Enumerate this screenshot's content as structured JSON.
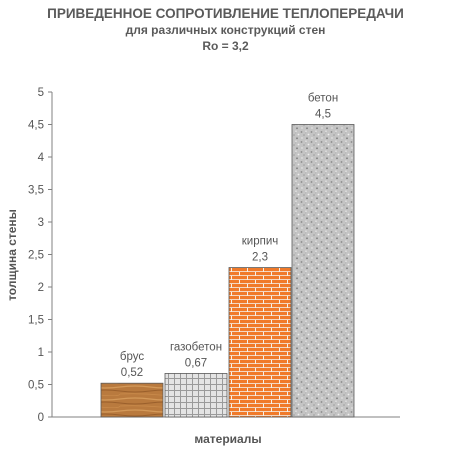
{
  "chart_data": {
    "type": "bar",
    "title": "ПРИВЕДЕННОЕ СОПРОТИВЛЕНИЕ ТЕПЛОПЕРЕДАЧИ",
    "subtitle": "для различных конструкций стен",
    "subtitle2": "Ro = 3,2",
    "xlabel": "материалы",
    "ylabel": "толщина стены",
    "ylim": [
      0,
      5
    ],
    "yticks": [
      "0",
      "0,5",
      "1",
      "1,5",
      "2",
      "2,5",
      "3",
      "3,5",
      "4",
      "4,5",
      "5"
    ],
    "grid": false,
    "categories": [
      "брус",
      "газобетон",
      "кирпич",
      "бетон"
    ],
    "values": [
      0.52,
      0.67,
      2.3,
      4.5
    ],
    "value_labels": [
      "0,52",
      "0,67",
      "2,3",
      "4,5"
    ],
    "fills": [
      "wood",
      "tile",
      "brick",
      "concrete"
    ]
  },
  "colors": {
    "wood": "#b97a3e",
    "tile": "#d7d7d7",
    "brick": "#f07a2a",
    "concrete": "#c8c8c8",
    "axis": "#808080",
    "text": "#555555"
  }
}
